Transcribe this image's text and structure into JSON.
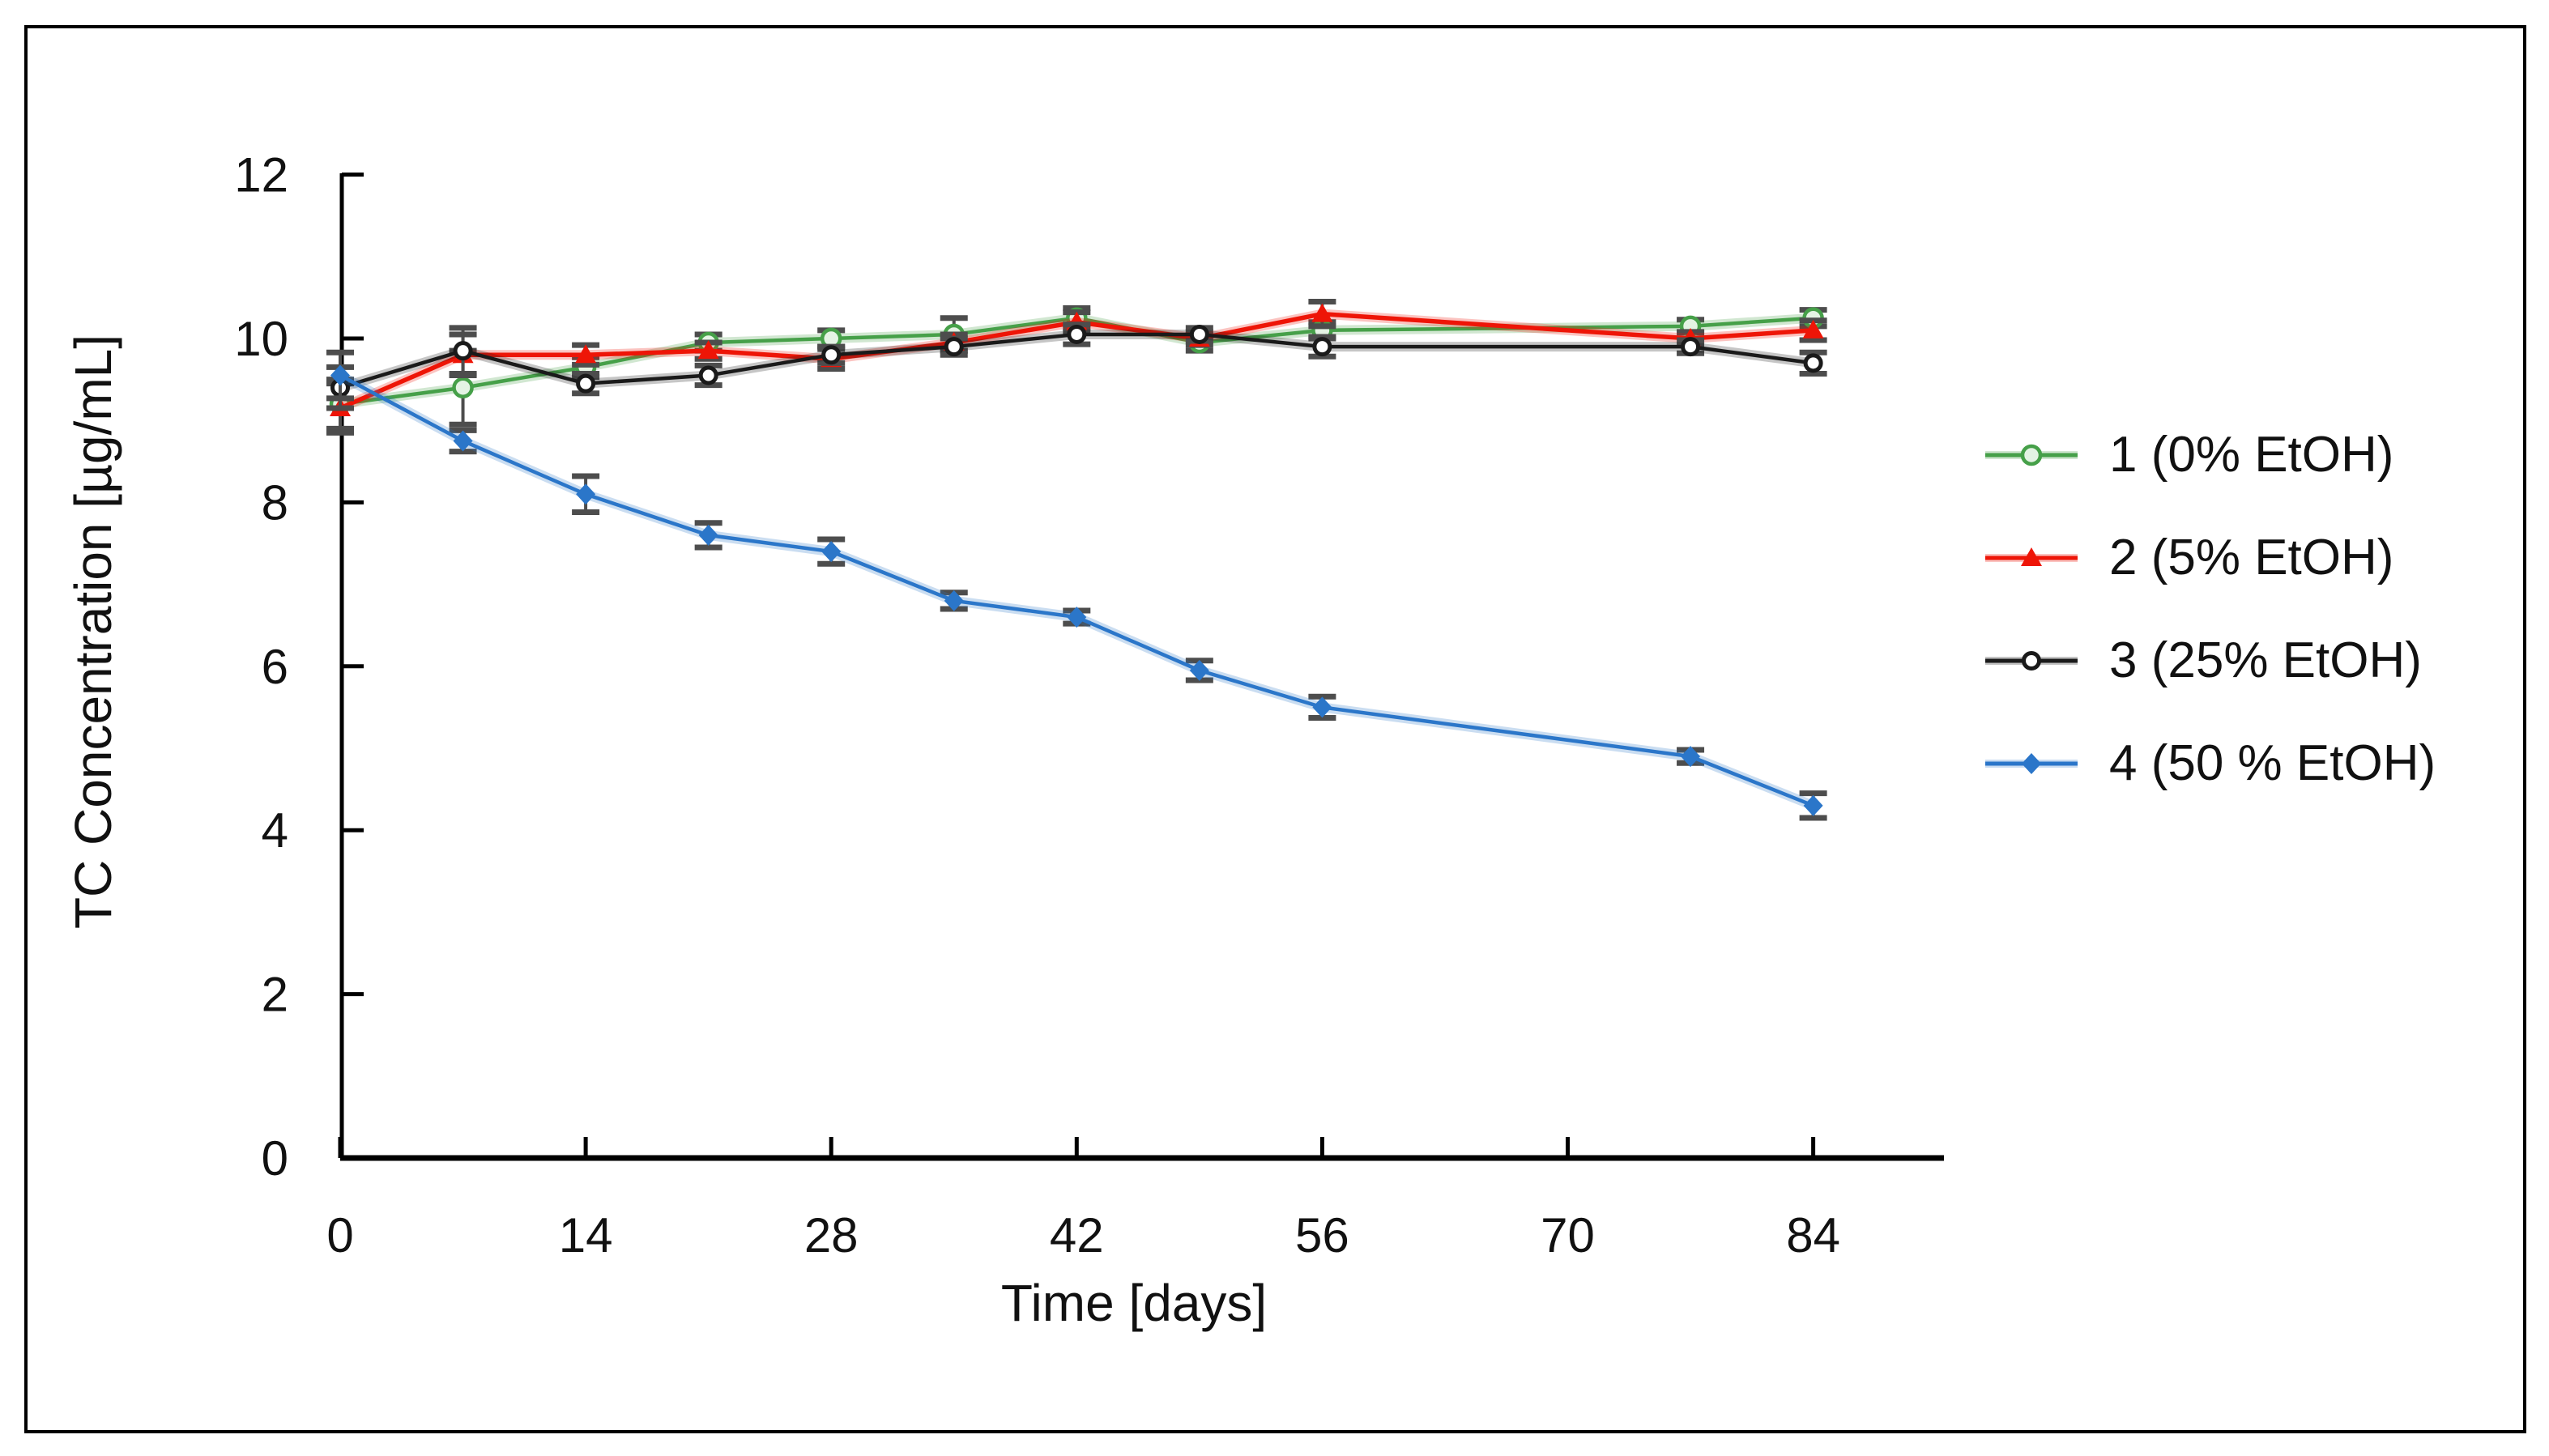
{
  "chart_data": {
    "type": "line",
    "title": "",
    "xlabel": "Time [days]",
    "ylabel": "TC Concentration [µg/mL]",
    "x_ticks": [
      0,
      14,
      28,
      42,
      56,
      70,
      84
    ],
    "y_ticks": [
      0,
      2,
      4,
      6,
      8,
      10,
      12
    ],
    "xlim": [
      0,
      91
    ],
    "ylim": [
      0,
      12
    ],
    "grid": false,
    "legend_position": "right-middle",
    "error_bar_color": "#4d4d4d",
    "x": [
      0,
      7,
      14,
      21,
      28,
      35,
      42,
      49,
      56,
      77,
      84
    ],
    "series": [
      {
        "name": "1 (0% EtOH)",
        "color": "#46a049",
        "marker": "open-circle",
        "values": [
          9.2,
          9.4,
          9.65,
          9.95,
          10.0,
          10.05,
          10.25,
          9.95,
          10.1,
          10.15,
          10.25
        ],
        "errors": [
          0.3,
          0.45,
          0.12,
          0.1,
          0.1,
          0.2,
          0.12,
          0.1,
          0.1,
          0.08,
          0.1
        ]
      },
      {
        "name": "2 (5% EtOH)",
        "color": "#ee1507",
        "marker": "triangle",
        "values": [
          9.15,
          9.8,
          9.8,
          9.85,
          9.75,
          9.95,
          10.2,
          10.0,
          10.3,
          10.0,
          10.1
        ],
        "errors": [
          0.3,
          0.25,
          0.12,
          0.1,
          0.12,
          0.1,
          0.12,
          0.08,
          0.15,
          0.08,
          0.12
        ]
      },
      {
        "name": "3 (25% EtOH)",
        "color": "#1a1a1a",
        "marker": "dot-circle",
        "values": [
          9.4,
          9.85,
          9.45,
          9.55,
          9.8,
          9.9,
          10.05,
          10.05,
          9.9,
          9.9,
          9.7
        ],
        "errors": [
          0.25,
          0.28,
          0.12,
          0.12,
          0.1,
          0.1,
          0.12,
          0.08,
          0.12,
          0.08,
          0.13
        ]
      },
      {
        "name": "4 (50 % EtOH)",
        "color": "#2b76c9",
        "marker": "diamond",
        "values": [
          9.55,
          8.75,
          8.1,
          7.6,
          7.4,
          6.8,
          6.6,
          5.95,
          5.5,
          4.9,
          4.3
        ],
        "errors": [
          0.28,
          0.13,
          0.22,
          0.15,
          0.15,
          0.1,
          0.08,
          0.12,
          0.13,
          0.08,
          0.15
        ]
      }
    ]
  }
}
